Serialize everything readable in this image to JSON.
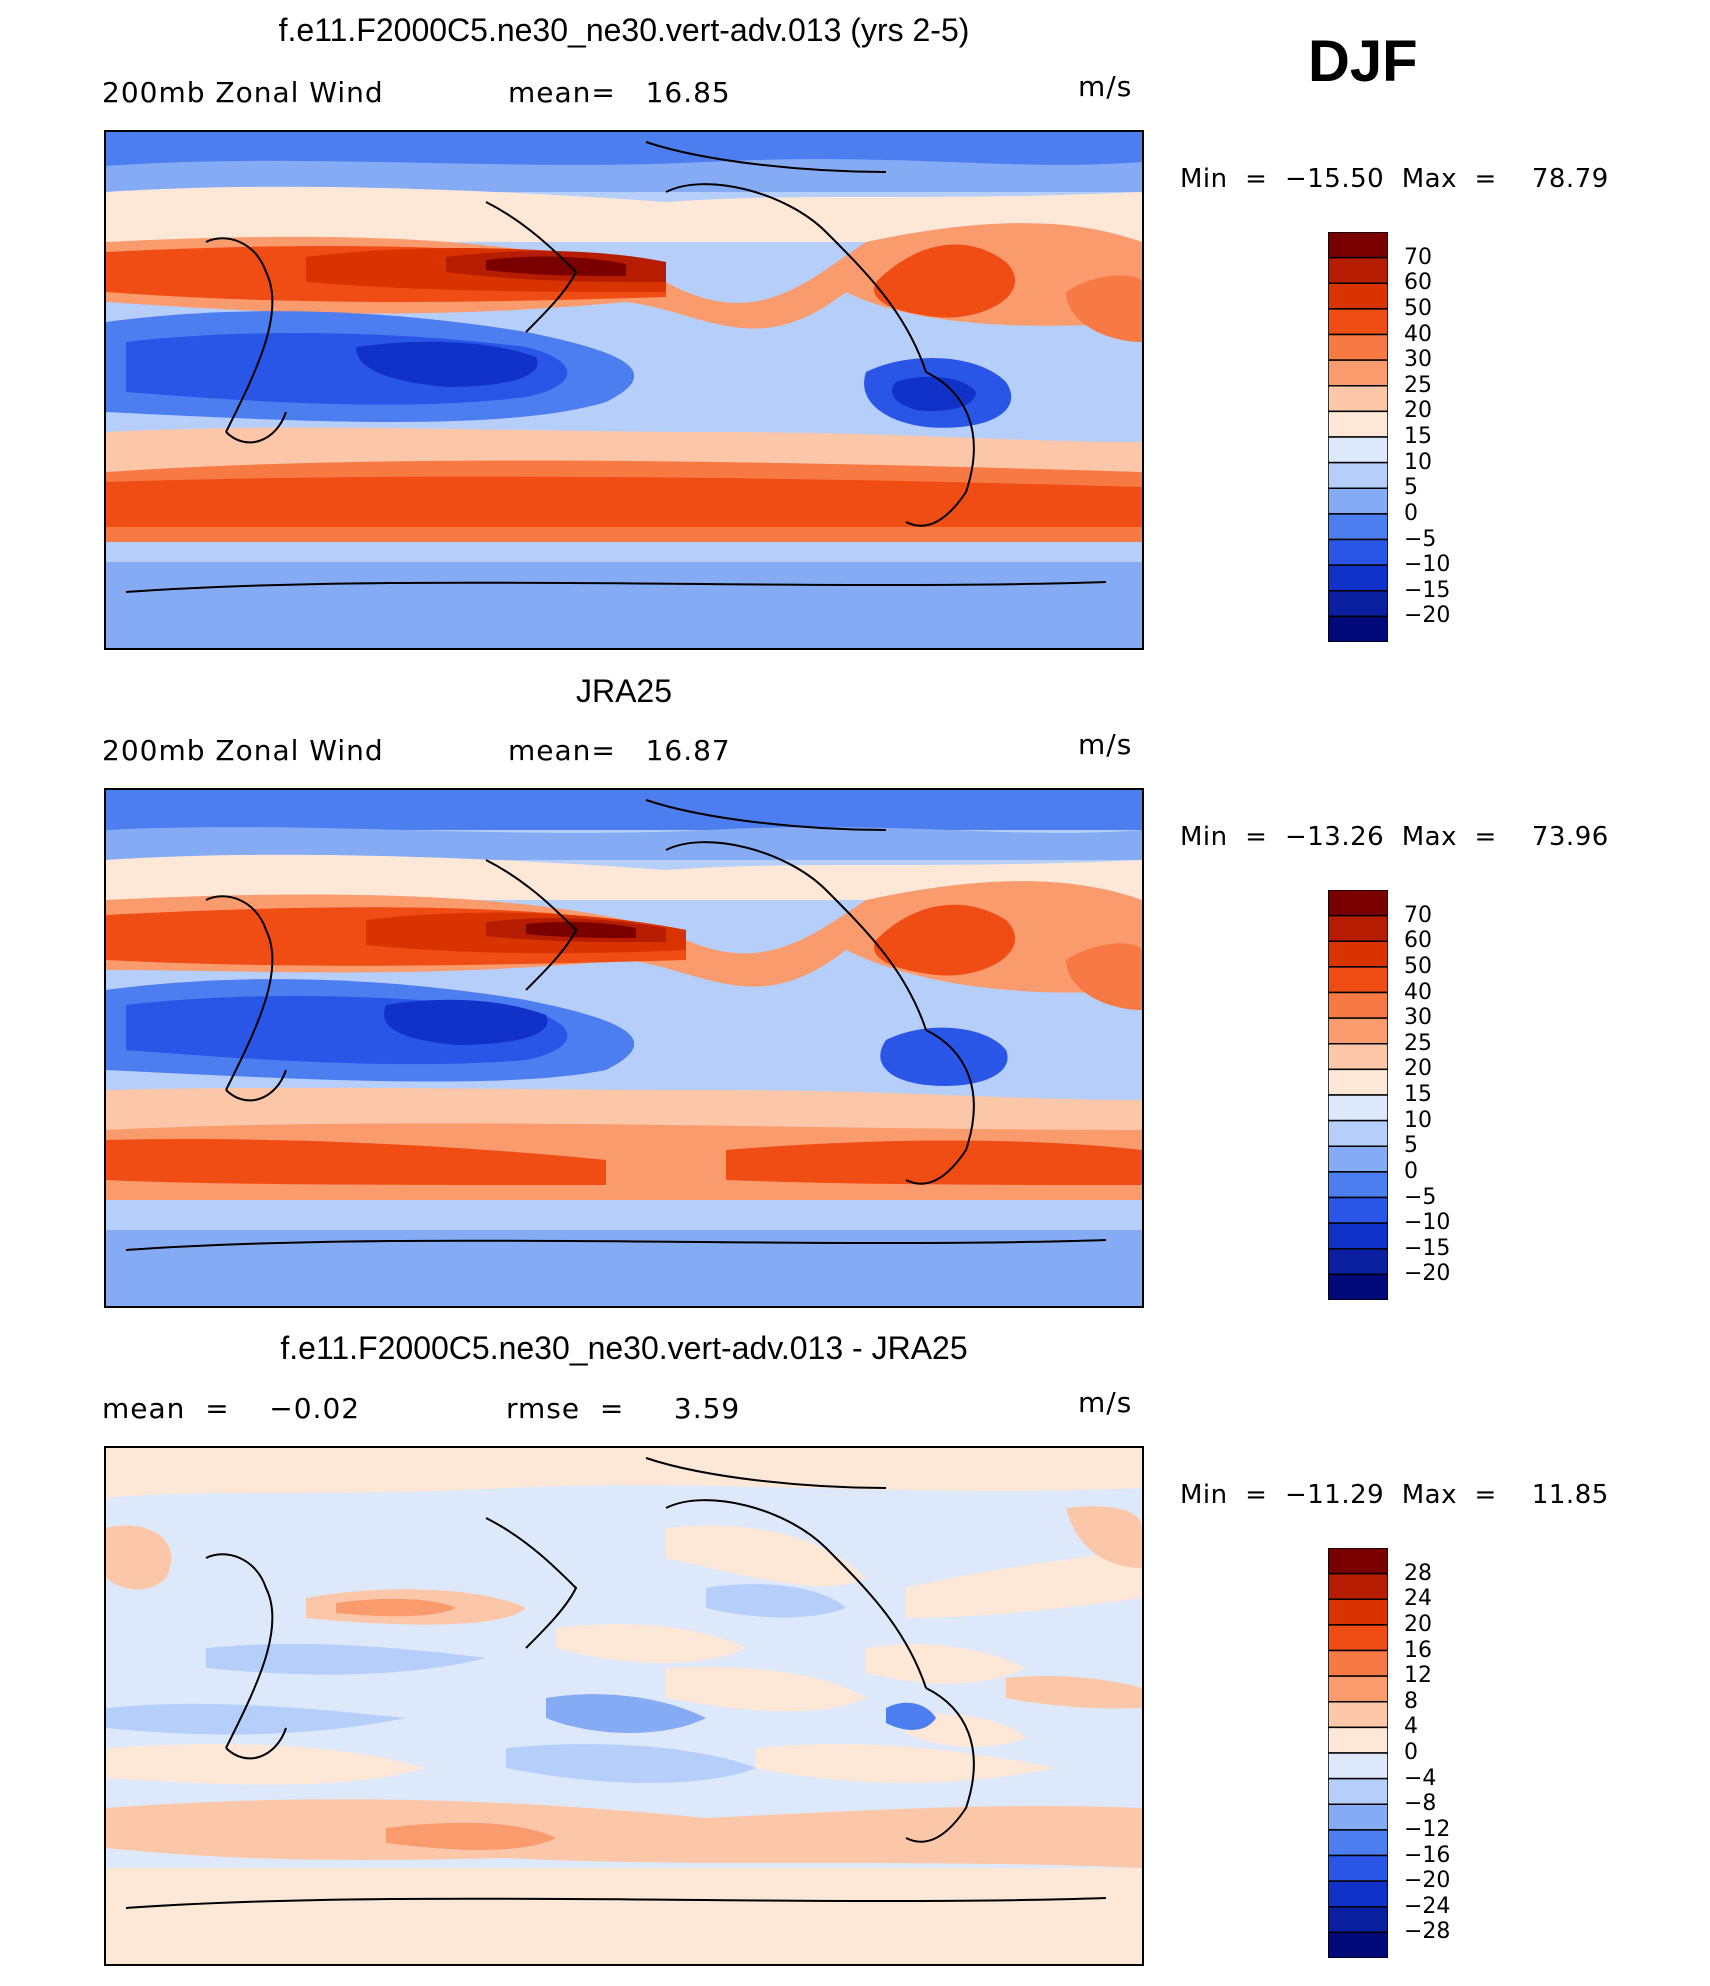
{
  "season": "DJF",
  "panels": [
    {
      "title": "f.e11.F2000C5.ne30_ne30.vert-adv.013 (yrs 2-5)",
      "left_label": "200mb Zonal Wind",
      "center_label": "mean=   16.85",
      "units": "m/s",
      "minmax": "Min  =  −15.50  Max  =    78.79"
    },
    {
      "title": "JRA25",
      "left_label": "200mb Zonal Wind",
      "center_label": "mean=   16.87",
      "units": "m/s",
      "minmax": "Min  =  −13.26  Max  =    73.96"
    },
    {
      "title": "f.e11.F2000C5.ne30_ne30.vert-adv.013 - JRA25",
      "left_label": "mean  =    −0.02",
      "center_label": "rmse  =     3.59",
      "units": "m/s",
      "minmax": "Min  =  −11.29  Max  =    11.85"
    }
  ],
  "colorbar_abs": {
    "labels": [
      "70",
      "60",
      "50",
      "40",
      "30",
      "25",
      "20",
      "15",
      "10",
      "5",
      "0",
      "−5",
      "−10",
      "−15",
      "−20"
    ],
    "colors": [
      "#7a0000",
      "#b51c00",
      "#d93300",
      "#f04d14",
      "#f77a45",
      "#fa9b6e",
      "#fcc7a8",
      "#fde8d8",
      "#dde9fa",
      "#b6cefa",
      "#86abf5",
      "#4d7ef0",
      "#2a56e8",
      "#1132c9",
      "#0a1ea0",
      "#020a7a"
    ]
  },
  "colorbar_diff": {
    "labels": [
      "28",
      "24",
      "20",
      "16",
      "12",
      "8",
      "4",
      "0",
      "−4",
      "−8",
      "−12",
      "−16",
      "−20",
      "−24",
      "−28"
    ],
    "colors": [
      "#7a0000",
      "#b51c00",
      "#d93300",
      "#f04d14",
      "#f77a45",
      "#fa9b6e",
      "#fcc7a8",
      "#fde8d8",
      "#dde9fa",
      "#b6cefa",
      "#86abf5",
      "#4d7ef0",
      "#2a56e8",
      "#1132c9",
      "#0a1ea0",
      "#020a7a"
    ]
  }
}
